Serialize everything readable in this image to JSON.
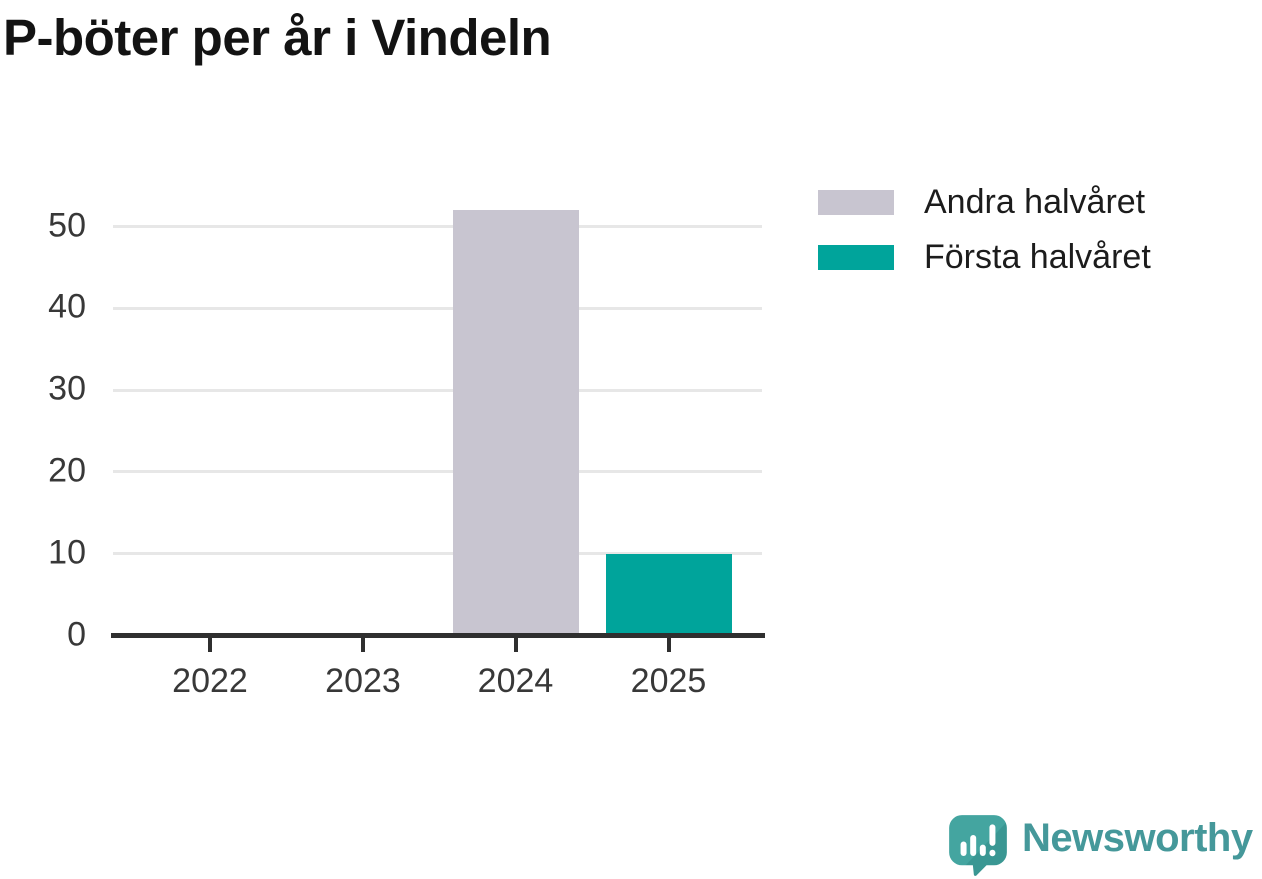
{
  "title": "P-böter per år i Vindeln",
  "legend": [
    {
      "label": "Andra halvåret",
      "color": "#c8c5d0"
    },
    {
      "label": "Första halvåret",
      "color": "#00a49b"
    }
  ],
  "chart_data": {
    "type": "bar",
    "stacked": true,
    "title": "P-böter per år i Vindeln",
    "categories": [
      "2022",
      "2023",
      "2024",
      "2025"
    ],
    "series": [
      {
        "name": "Andra halvåret",
        "color": "#c8c5d0",
        "values": [
          0,
          0,
          52,
          0
        ]
      },
      {
        "name": "Första halvåret",
        "color": "#00a49b",
        "values": [
          0,
          0,
          0,
          10
        ]
      }
    ],
    "xlabel": "",
    "ylabel": "",
    "ylim": [
      0,
      52
    ],
    "yticks": [
      0,
      10,
      20,
      30,
      40,
      50
    ],
    "grid": "horizontal",
    "legend_position": "top-right"
  },
  "colors": {
    "first_half": "#00a49b",
    "second_half": "#c8c5d0",
    "grid": "#e7e7e7",
    "axis": "#2f2f2f",
    "tick_text": "#383838",
    "title_text": "#131313",
    "logo_teal": "#42a29e",
    "logo_teal_dark": "#3a9793",
    "logo_text_color": "#45989a"
  },
  "branding": {
    "logo_text": "Newsworthy",
    "logo_icon": "newsworthy-speech-bubble-bar-chart-icon"
  }
}
